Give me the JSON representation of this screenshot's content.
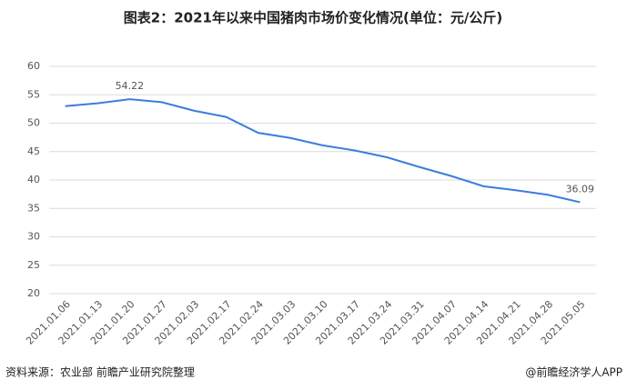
{
  "chart_data": {
    "type": "line",
    "title": "图表2：2021年以来中国猪肉市场价变化情况(单位：元/公斤)",
    "categories": [
      "2021.01.06",
      "2021.01.13",
      "2021.01.20",
      "2021.01.27",
      "2021.02.03",
      "2021.02.17",
      "2021.02.24",
      "2021.03.03",
      "2021.03.10",
      "2021.03.17",
      "2021.03.24",
      "2021.03.31",
      "2021.04.07",
      "2021.04.14",
      "2021.04.21",
      "2021.04.28",
      "2021.05.05"
    ],
    "series": [
      {
        "color": "#3b7ddd",
        "values": [
          53.0,
          53.5,
          54.22,
          53.7,
          52.2,
          51.1,
          48.3,
          47.4,
          46.1,
          45.2,
          44.0,
          42.3,
          40.7,
          38.9,
          38.2,
          37.4,
          36.09
        ]
      }
    ],
    "labeled_points": [
      2,
      16
    ],
    "ylim": [
      20,
      60
    ],
    "yticks": [
      20,
      25,
      30,
      35,
      40,
      45,
      50,
      55,
      60
    ],
    "grid": true,
    "source": "资料来源：农业部 前瞻产业研究院整理",
    "credit": "@前瞻经济学人APP"
  }
}
